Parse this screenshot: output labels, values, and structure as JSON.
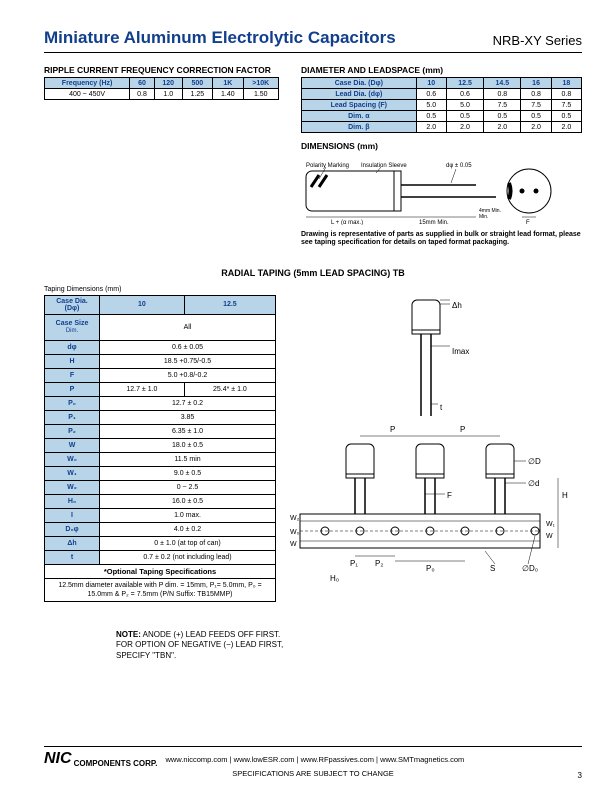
{
  "header": {
    "title": "Miniature Aluminum Electrolytic Capacitors",
    "series": "NRB-XY Series"
  },
  "ripple": {
    "heading": "RIPPLE CURRENT FREQUENCY CORRECTION FACTOR",
    "header_cells": [
      "Frequency (Hz)",
      "60",
      "120",
      "500",
      "1K",
      ">10K"
    ],
    "row": [
      "400 ~ 450V",
      "0.8",
      "1.0",
      "1.25",
      "1.40",
      "1.50"
    ]
  },
  "diameter": {
    "heading": "DIAMETER AND LEADSPACE (mm)",
    "rows": [
      [
        "Case Dia. (Dφ)",
        "10",
        "12.5",
        "14.5",
        "16",
        "18"
      ],
      [
        "Lead Dia. (dφ)",
        "0.6",
        "0.6",
        "0.8",
        "0.8",
        "0.8"
      ],
      [
        "Lead Spacing (F)",
        "5.0",
        "5.0",
        "7.5",
        "7.5",
        "7.5"
      ],
      [
        "Dim. α",
        "0.5",
        "0.5",
        "0.5",
        "0.5",
        "0.5"
      ],
      [
        "Dim. β",
        "2.0",
        "2.0",
        "2.0",
        "2.0",
        "2.0"
      ]
    ]
  },
  "dimensions": {
    "heading": "DIMENSIONS (mm)",
    "labels": {
      "polarity": "Polarity Marking",
      "sleeve": "Insulation Sleeve",
      "dtol": "dφ ± 0.05",
      "L": "L + (α max.)",
      "lead15": "15mm Min.",
      "lead4": "4mm Min.",
      "F": "F"
    },
    "caption": "Drawing is representative of parts as supplied in bulk or straight lead format, please see taping specification for details on taped format packaging."
  },
  "radial_title": "RADIAL TAPING (5mm LEAD SPACING) TB",
  "taping": {
    "label": "Taping Dimensions (mm)",
    "hdr": [
      "Case Dia. (Dφ)",
      "10",
      "12.5"
    ],
    "rows": [
      {
        "l": "Case Size",
        "v": "All",
        "span": 2,
        "sub": "Dim."
      },
      {
        "l": "dφ",
        "v": "0.6 ± 0.05",
        "span": 2
      },
      {
        "l": "H",
        "v": "18.5 +0.75/-0.5",
        "span": 2
      },
      {
        "l": "F",
        "v": "5.0 +0.8/-0.2",
        "span": 2
      },
      {
        "l": "P",
        "v": [
          "12.7 ± 1.0",
          "25.4* ± 1.0"
        ],
        "span": 1
      },
      {
        "l": "P₀",
        "v": "12.7 ± 0.2",
        "span": 2
      },
      {
        "l": "P₁",
        "v": "3.85",
        "span": 2
      },
      {
        "l": "P₂",
        "v": "6.35 ± 1.0",
        "span": 2
      },
      {
        "l": "W",
        "v": "18.0 ± 0.5",
        "span": 2
      },
      {
        "l": "W₀",
        "v": "11.5 min",
        "span": 2
      },
      {
        "l": "W₁",
        "v": "9.0 ± 0.5",
        "span": 2
      },
      {
        "l": "W₂",
        "v": "0 ~ 2.5",
        "span": 2
      },
      {
        "l": "H₀",
        "v": "16.0 ± 0.5",
        "span": 2
      },
      {
        "l": "I",
        "v": "1.0 max.",
        "span": 2
      },
      {
        "l": "D₀φ",
        "v": "4.0 ± 0.2",
        "span": 2
      },
      {
        "l": "Δh",
        "v": "0 ± 1.0 (at top of can)",
        "span": 2
      },
      {
        "l": "t",
        "v": "0.7 ± 0.2 (not including lead)",
        "span": 2
      }
    ],
    "optional": "*Optional Taping Specifications",
    "foot12": "12.5mm diameter available with P dim. = 15mm, P₁= 5.0mm, P₀ = 15.0mm & P₂ = 7.5mm (P/N Suffix: TB15MMP)"
  },
  "diagram_labels": {
    "dh": "Δh",
    "imax": "Imax",
    "t": "t",
    "P": "P",
    "Po": "P₀",
    "D": "∅D",
    "d": "∅d",
    "H": "H",
    "W": "W",
    "W0": "W₀",
    "W1": "W₁",
    "W2": "W₂",
    "F": "F",
    "P1": "P₁",
    "P2": "P₂",
    "H0": "H₀",
    "S": "S",
    "D0": "∅D₀"
  },
  "note": {
    "label": "NOTE:",
    "text1": "ANODE (+) LEAD FEEDS OFF FIRST.",
    "text2": "FOR OPTION OF NEGATIVE (−) LEAD FIRST,",
    "text3": "SPECIFY \"TBN\"."
  },
  "footer": {
    "corp": "COMPONENTS CORP.",
    "links": "www.niccomp.com   |   www.lowESR.com   |   www.RFpassives.com   |   www.SMTmagnetics.com",
    "spec": "SPECIFICATIONS ARE SUBJECT TO CHANGE",
    "pagenum": "3"
  }
}
